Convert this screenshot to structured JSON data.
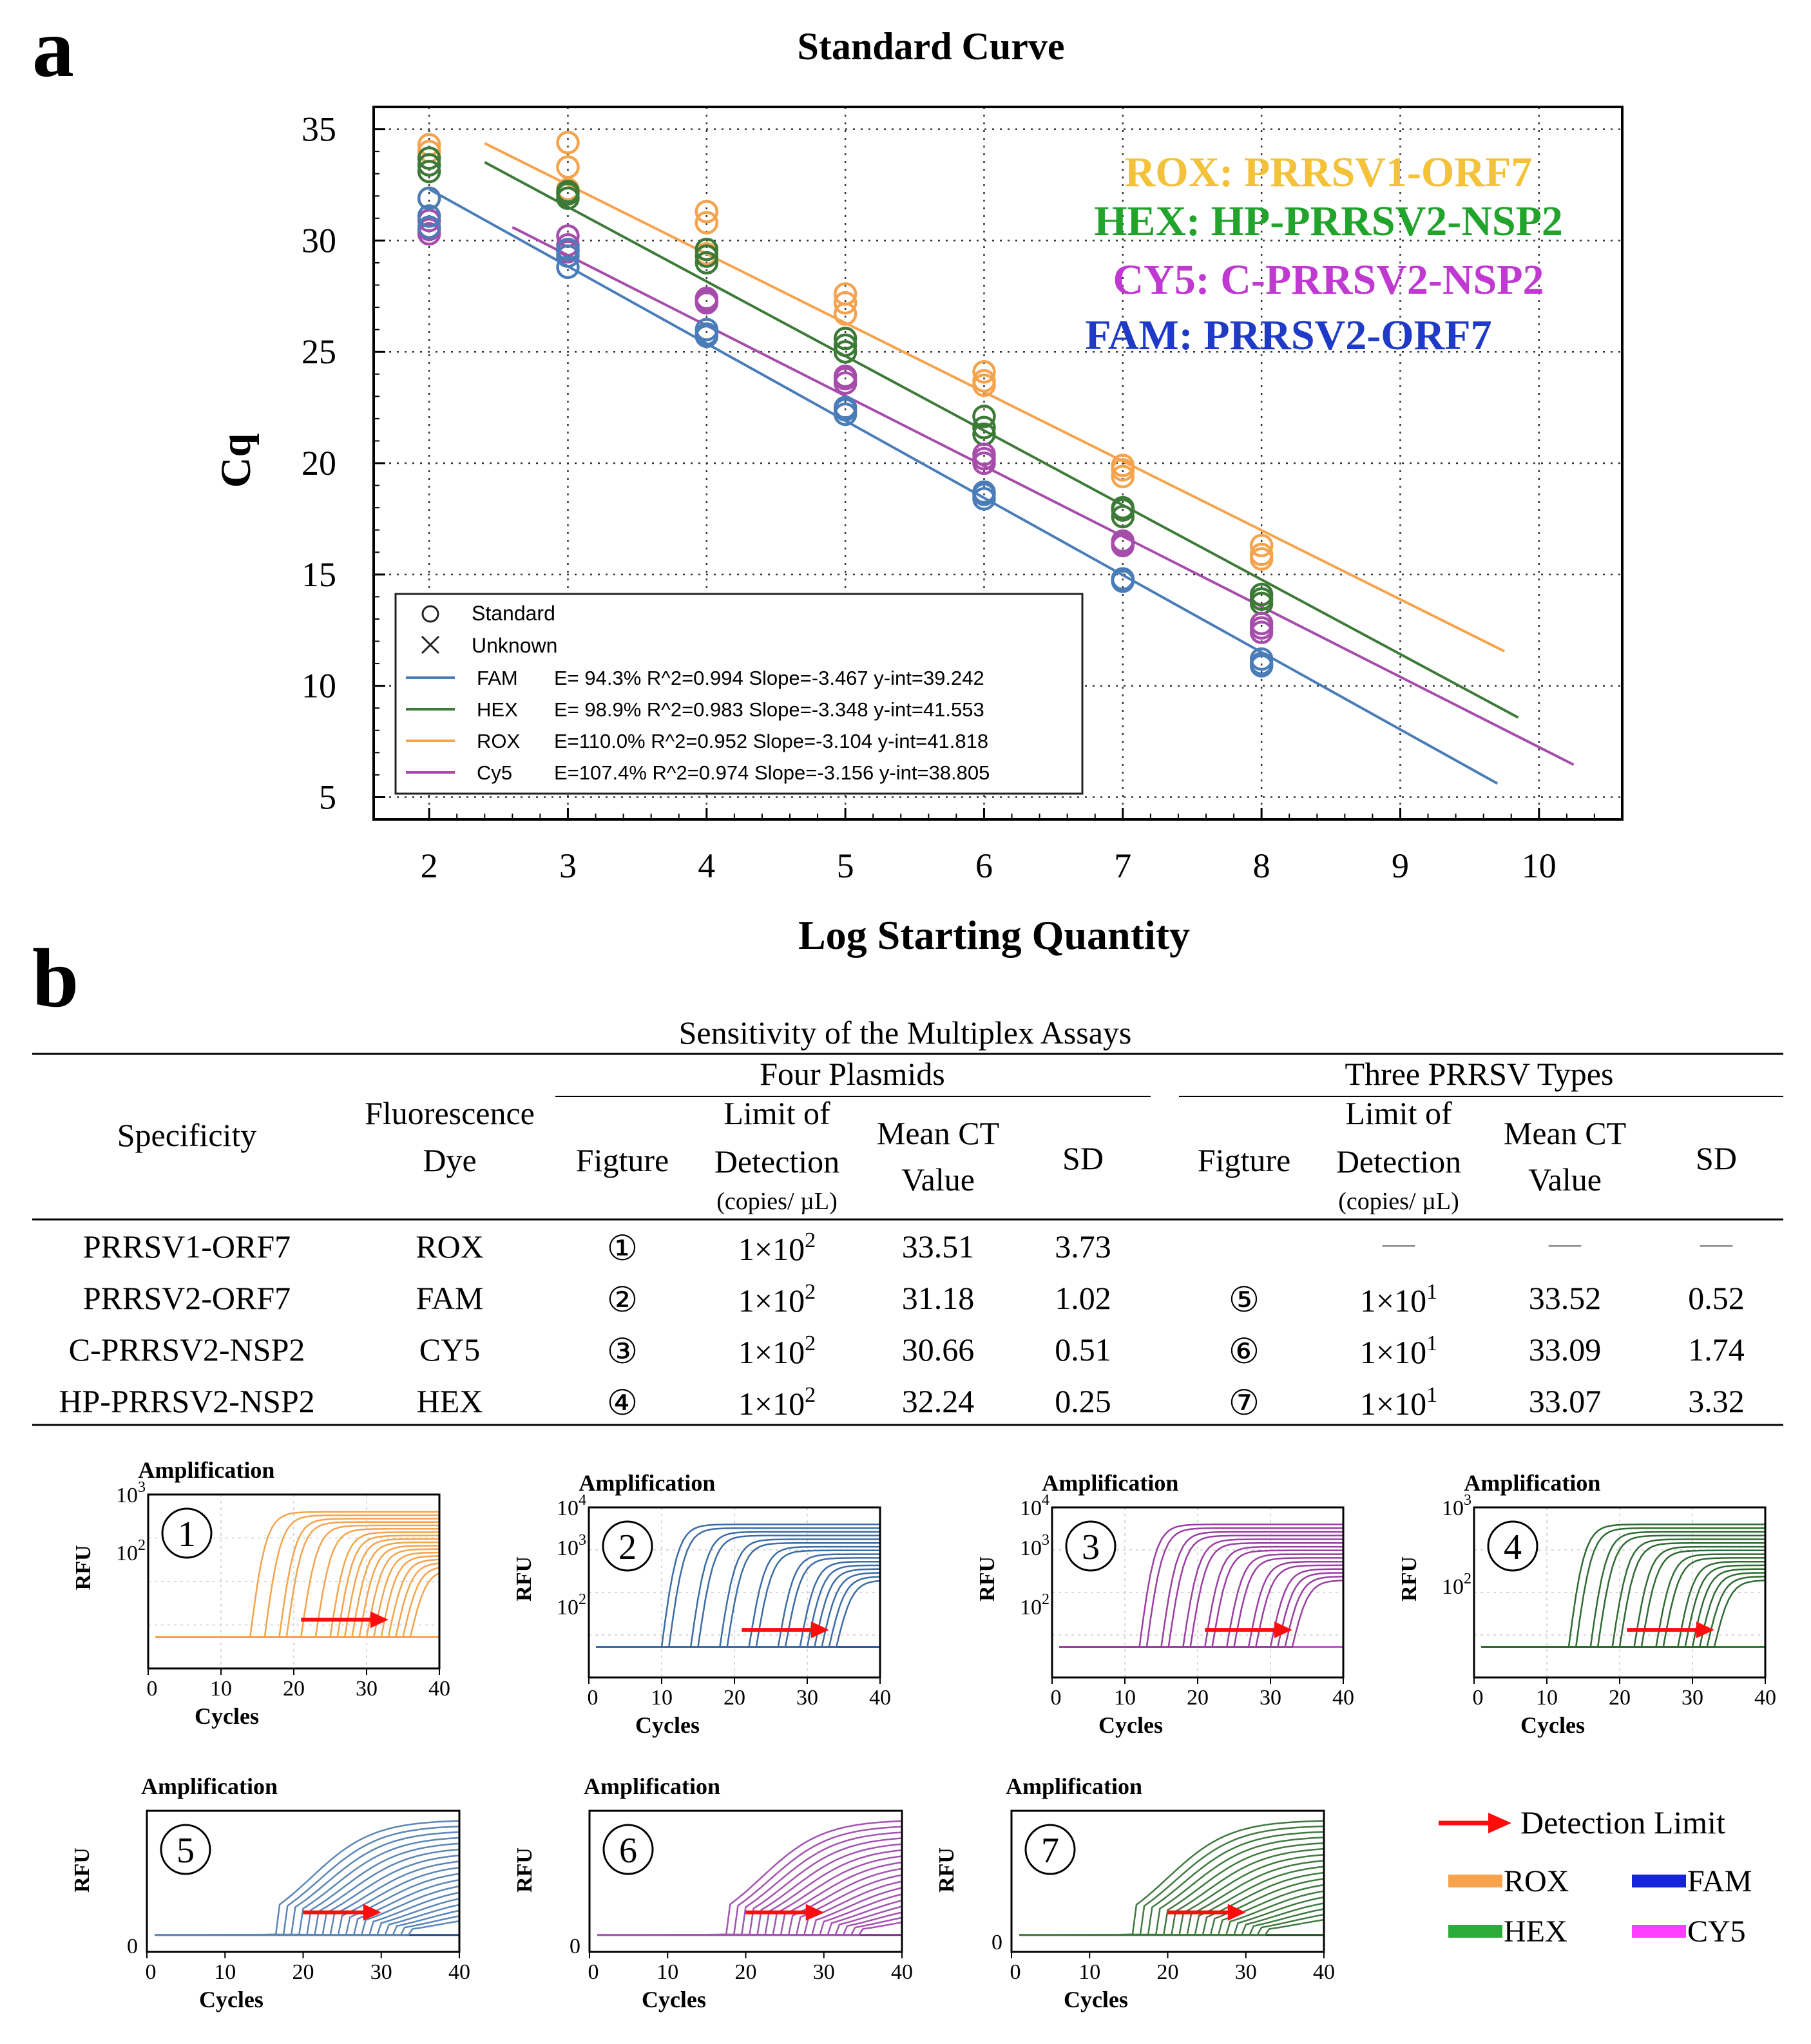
{
  "panel_a": {
    "letter": "a",
    "chart_data": {
      "type": "scatter",
      "title": "Standard Curve",
      "xlabel": "Log Starting Quantity",
      "ylabel": "Cq",
      "xlim": [
        1.6,
        10.6
      ],
      "ylim": [
        4,
        36
      ],
      "xticks": [
        2,
        3,
        4,
        5,
        6,
        7,
        8,
        9,
        10
      ],
      "yticks": [
        5,
        10,
        15,
        20,
        25,
        30,
        35
      ],
      "grid": true,
      "legend_position": "bottom-left",
      "legend_markers": [
        "Standard",
        "Unknown"
      ],
      "series": [
        {
          "name": "FAM",
          "color": "#4a7db8",
          "fit": "E= 94.3% R^2=0.994 Slope=-3.467 y-int=39.242",
          "slope": -3.467,
          "intercept": 39.242,
          "fit_x": [
            2,
            9.7
          ],
          "points": [
            [
              2,
              31.9
            ],
            [
              2,
              31.1
            ],
            [
              2,
              30.6
            ],
            [
              3,
              29.3
            ],
            [
              3,
              28.8
            ],
            [
              3,
              29.6
            ],
            [
              4,
              25.8
            ],
            [
              4,
              26.0
            ],
            [
              4,
              25.7
            ],
            [
              5,
              22.5
            ],
            [
              5,
              22.2
            ],
            [
              5,
              22.4
            ],
            [
              6,
              18.7
            ],
            [
              6,
              18.4
            ],
            [
              6,
              18.6
            ],
            [
              7,
              14.8
            ],
            [
              7,
              14.7
            ],
            [
              7,
              14.8
            ],
            [
              8,
              11.2
            ],
            [
              8,
              10.9
            ],
            [
              8,
              11.0
            ]
          ]
        },
        {
          "name": "HEX",
          "color": "#3d7a38",
          "fit": "E= 98.9% R^2=0.983 Slope=-3.348 y-int=41.553",
          "slope": -3.348,
          "intercept": 41.553,
          "fit_x": [
            2.4,
            9.85
          ],
          "points": [
            [
              2,
              33.7
            ],
            [
              2,
              33.1
            ],
            [
              2,
              33.4
            ],
            [
              3,
              32.2
            ],
            [
              3,
              31.9
            ],
            [
              3,
              32.1
            ],
            [
              4,
              29.6
            ],
            [
              4,
              29.0
            ],
            [
              4,
              29.3
            ],
            [
              5,
              25.6
            ],
            [
              5,
              25.3
            ],
            [
              5,
              25.0
            ],
            [
              6,
              22.1
            ],
            [
              6,
              21.6
            ],
            [
              6,
              21.3
            ],
            [
              7,
              18.0
            ],
            [
              7,
              17.6
            ],
            [
              7,
              17.9
            ],
            [
              8,
              14.1
            ],
            [
              8,
              13.7
            ],
            [
              8,
              13.9
            ]
          ]
        },
        {
          "name": "ROX",
          "color": "#f5a34c",
          "fit": "E=110.0% R^2=0.952 Slope=-3.104 y-int=41.818",
          "slope": -3.104,
          "intercept": 41.818,
          "fit_x": [
            2.4,
            9.75
          ],
          "points": [
            [
              2,
              34.3
            ],
            [
              2,
              34.0
            ],
            [
              2,
              31.9
            ],
            [
              3,
              34.4
            ],
            [
              3,
              33.3
            ],
            [
              3,
              32.3
            ],
            [
              4,
              31.3
            ],
            [
              4,
              30.8
            ],
            [
              4,
              29.4
            ],
            [
              5,
              27.6
            ],
            [
              5,
              27.2
            ],
            [
              5,
              26.7
            ],
            [
              6,
              24.1
            ],
            [
              6,
              23.7
            ],
            [
              6,
              23.5
            ],
            [
              7,
              19.9
            ],
            [
              7,
              19.4
            ],
            [
              7,
              19.7
            ],
            [
              8,
              16.3
            ],
            [
              8,
              15.7
            ],
            [
              8,
              15.9
            ]
          ]
        },
        {
          "name": "Cy5",
          "color": "#a64cab",
          "fit": "E=107.4% R^2=0.974 Slope=-3.156 y-int=38.805",
          "slope": -3.156,
          "intercept": 38.805,
          "fit_x": [
            2.6,
            10.25
          ],
          "points": [
            [
              2,
              30.3
            ],
            [
              2,
              30.9
            ],
            [
              2,
              30.5
            ],
            [
              3,
              30.2
            ],
            [
              3,
              29.8
            ],
            [
              3,
              29.5
            ],
            [
              4,
              27.3
            ],
            [
              4,
              27.4
            ],
            [
              4,
              27.2
            ],
            [
              5,
              23.9
            ],
            [
              5,
              23.6
            ],
            [
              5,
              23.8
            ],
            [
              6,
              20.4
            ],
            [
              6,
              20.0
            ],
            [
              6,
              20.2
            ],
            [
              7,
              16.5
            ],
            [
              7,
              16.3
            ],
            [
              7,
              16.4
            ],
            [
              8,
              12.8
            ],
            [
              8,
              12.4
            ],
            [
              8,
              12.6
            ]
          ]
        }
      ],
      "annotations": [
        {
          "text": "ROX: PRRSV1-ORF7",
          "color": "#f3c13a"
        },
        {
          "text": "HEX: HP-PRRSV2-NSP2",
          "color": "#21a32c"
        },
        {
          "text": "CY5: C-PRRSV2-NSP2",
          "color": "#c03ad2"
        },
        {
          "text": "FAM: PRRSV2-ORF7",
          "color": "#1f3ac7"
        }
      ]
    }
  },
  "panel_b": {
    "letter": "b",
    "table": {
      "caption": "Sensitivity of the  Multiplex Assays",
      "group_four": "Four Plasmids",
      "group_three": "Three PRRSV Types",
      "h_specificity": "Specificity",
      "h_fluor_1": "Fluorescence",
      "h_fluor_2": "Dye",
      "h_figture": "Figture",
      "h_lod_1": "Limit of",
      "h_lod_2": "Detection",
      "h_lod_3": "(copies/ µL)",
      "h_mean_1": "Mean CT",
      "h_mean_2": "Value",
      "h_sd": "SD",
      "dash": "—",
      "rows": [
        {
          "spec": "PRRSV1-ORF7",
          "dye": "ROX",
          "fig1": "①",
          "lod1_base": "1×10",
          "lod1_exp": "2",
          "mean1": "33.51",
          "sd1": "3.73",
          "fig2": "",
          "lod2_base": "",
          "lod2_exp": "",
          "mean2": "",
          "sd2": ""
        },
        {
          "spec": "PRRSV2-ORF7",
          "dye": "FAM",
          "fig1": "②",
          "lod1_base": "1×10",
          "lod1_exp": "2",
          "mean1": "31.18",
          "sd1": "1.02",
          "fig2": "⑤",
          "lod2_base": "1×10",
          "lod2_exp": "1",
          "mean2": "33.52",
          "sd2": "0.52"
        },
        {
          "spec": "C-PRRSV2-NSP2",
          "dye": "CY5",
          "fig1": "③",
          "lod1_base": "1×10",
          "lod1_exp": "2",
          "mean1": "30.66",
          "sd1": "0.51",
          "fig2": "⑥",
          "lod2_base": "1×10",
          "lod2_exp": "1",
          "mean2": "33.09",
          "sd2": "1.74"
        },
        {
          "spec": "HP-PRRSV2-NSP2",
          "dye": "HEX",
          "fig1": "④",
          "lod1_base": "1×10",
          "lod1_exp": "2",
          "mean1": "32.24",
          "sd1": "0.25",
          "fig2": "⑦",
          "lod2_base": "1×10",
          "lod2_exp": "1",
          "mean2": "33.07",
          "sd2": "3.32"
        }
      ]
    },
    "amplification_plots": [
      {
        "id": "1",
        "label": "①",
        "title": "Amplification",
        "xlabel": "Cycles",
        "ylabel": "RFU",
        "scale": "log",
        "color": "#f5a34c",
        "base_color": "#f5a34c",
        "xticks": [
          "0",
          "10",
          "20",
          "30",
          "40"
        ],
        "ytick_labels": [
          {
            "b": "10",
            "e": "3"
          },
          {
            "b": "10",
            "e": "2"
          }
        ],
        "ct_values": [
          14,
          16,
          18,
          19,
          21,
          23,
          25,
          26,
          27,
          28,
          29,
          30,
          31,
          32,
          33,
          34,
          35,
          36
        ]
      },
      {
        "id": "2",
        "label": "②",
        "title": "Amplification",
        "xlabel": "Cycles",
        "ylabel": "RFU",
        "scale": "log",
        "color": "#3b6ca6",
        "base_color": "#2b5b9c",
        "xticks": [
          "0",
          "10",
          "20",
          "30",
          "40"
        ],
        "ytick_labels": [
          {
            "b": "10",
            "e": "4"
          },
          {
            "b": "10",
            "e": "3"
          },
          {
            "b": "10",
            "e": "2"
          }
        ],
        "ct_values": [
          10,
          11,
          14,
          15,
          18,
          19,
          22,
          23,
          26,
          27,
          29,
          30,
          31,
          32,
          33,
          34
        ]
      },
      {
        "id": "3",
        "label": "③",
        "title": "Amplification",
        "xlabel": "Cycles",
        "ylabel": "RFU",
        "scale": "log",
        "color": "#9b3ea3",
        "base_color": "#c354d4",
        "xticks": [
          "0",
          "10",
          "20",
          "30",
          "40"
        ],
        "ytick_labels": [
          {
            "b": "10",
            "e": "4"
          },
          {
            "b": "10",
            "e": "3"
          },
          {
            "b": "10",
            "e": "2"
          }
        ],
        "ct_values": [
          12,
          13,
          15,
          16,
          18,
          19,
          21,
          22,
          24,
          25,
          27,
          28,
          30,
          31,
          32,
          33
        ]
      },
      {
        "id": "4",
        "label": "④",
        "title": "Amplification",
        "xlabel": "Cycles",
        "ylabel": "RFU",
        "scale": "log",
        "color": "#2e6b32",
        "base_color": "#2e7d32",
        "xticks": [
          "0",
          "10",
          "20",
          "30",
          "40"
        ],
        "ytick_labels": [
          {
            "b": "10",
            "e": "3"
          },
          {
            "b": "10",
            "e": "2"
          }
        ],
        "ct_values": [
          13,
          14,
          16,
          17,
          19,
          20,
          22,
          23,
          25,
          26,
          28,
          29,
          30,
          31,
          32,
          33
        ]
      },
      {
        "id": "5",
        "label": "⑤",
        "title": "Amplification",
        "xlabel": "Cycles",
        "ylabel": "RFU",
        "scale": "linear",
        "color": "#5a86b8",
        "base_color": "#1f4a86",
        "xticks": [
          "0",
          "10",
          "20",
          "30",
          "40"
        ],
        "ytick_labels": [
          {
            "b": "0",
            "e": ""
          }
        ],
        "ct_values": [
          17,
          18,
          19,
          20,
          21,
          22,
          23,
          24,
          25,
          26,
          27,
          28,
          29,
          30,
          31,
          32,
          33,
          34
        ]
      },
      {
        "id": "6",
        "label": "⑥",
        "title": "Amplification",
        "xlabel": "Cycles",
        "ylabel": "RFU",
        "scale": "linear",
        "color": "#a452b3",
        "base_color": "#7a2d86",
        "xticks": [
          "0",
          "10",
          "20",
          "30",
          "40"
        ],
        "ytick_labels": [
          {
            "b": "0",
            "e": ""
          }
        ],
        "ct_values": [
          18,
          19,
          20,
          21,
          22,
          23,
          24,
          25,
          26,
          27,
          28,
          29,
          30,
          31,
          32,
          33,
          34,
          35
        ]
      },
      {
        "id": "7",
        "label": "⑦",
        "title": "Amplification",
        "xlabel": "Cycles",
        "ylabel": "RFU",
        "scale": "linear",
        "color": "#3f7a40",
        "base_color": "#1e4a1e",
        "xticks": [
          "0",
          "10",
          "20",
          "30",
          "40"
        ],
        "ytick_labels": [
          {
            "b": "0",
            "e": ""
          }
        ],
        "ct_values": [
          16,
          17,
          18,
          19,
          20,
          21,
          22,
          23,
          24,
          25,
          26,
          27,
          28,
          29,
          30,
          31,
          32,
          33
        ]
      }
    ],
    "legend": {
      "detection_limit": "Detection Limit",
      "items": [
        {
          "name": "ROX",
          "color": "#f5a34c"
        },
        {
          "name": "FAM",
          "color": "#1424d6"
        },
        {
          "name": "HEX",
          "color": "#2cab3a"
        },
        {
          "name": "CY5",
          "color": "#ff3cff"
        }
      ]
    }
  }
}
